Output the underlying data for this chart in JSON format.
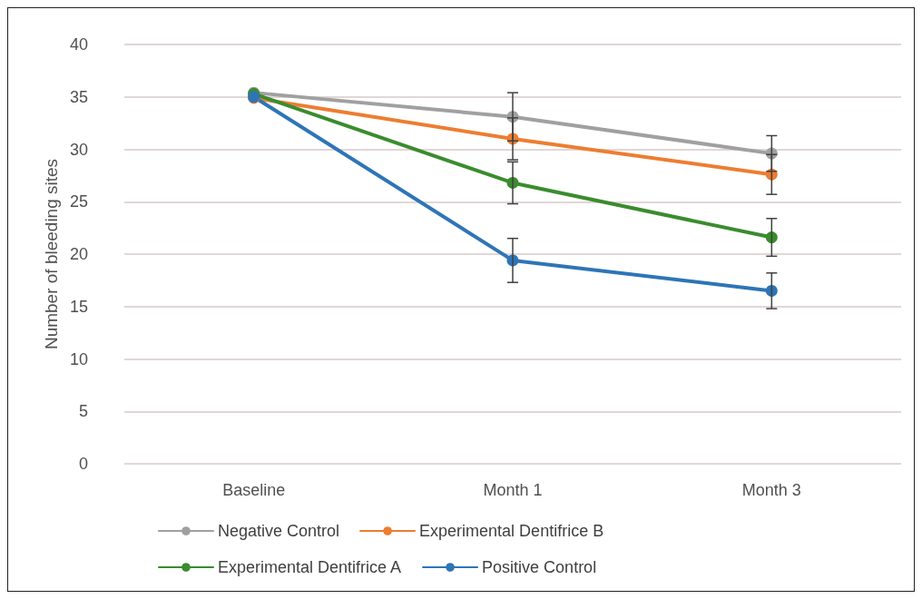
{
  "chart_data": {
    "type": "line",
    "ylabel": "Number of bleeding sites",
    "categories": [
      "Baseline",
      "Month 1",
      "Month 3"
    ],
    "ylim": [
      0,
      40
    ],
    "yticks": [
      0,
      5,
      10,
      15,
      20,
      25,
      30,
      35,
      40
    ],
    "grid": "y",
    "legend": "bottom",
    "marker": "circle",
    "line_style": "solid",
    "series": [
      {
        "name": "Negative Control",
        "color": "#a0a0a0",
        "values": [
          35.4,
          33.1,
          29.6
        ],
        "errors": [
          null,
          2.3,
          1.7
        ]
      },
      {
        "name": "Experimental Dentifrice B",
        "color": "#ed7d31",
        "values": [
          34.9,
          31.0,
          27.6
        ],
        "errors": [
          null,
          2.0,
          1.9
        ]
      },
      {
        "name": "Experimental Dentifrice A",
        "color": "#3a8c2e",
        "values": [
          35.3,
          26.8,
          21.6
        ],
        "errors": [
          null,
          2.0,
          1.8
        ]
      },
      {
        "name": "Positive Control",
        "color": "#2e75b6",
        "values": [
          35.0,
          19.4,
          16.5
        ],
        "errors": [
          null,
          2.1,
          1.7
        ]
      }
    ]
  }
}
